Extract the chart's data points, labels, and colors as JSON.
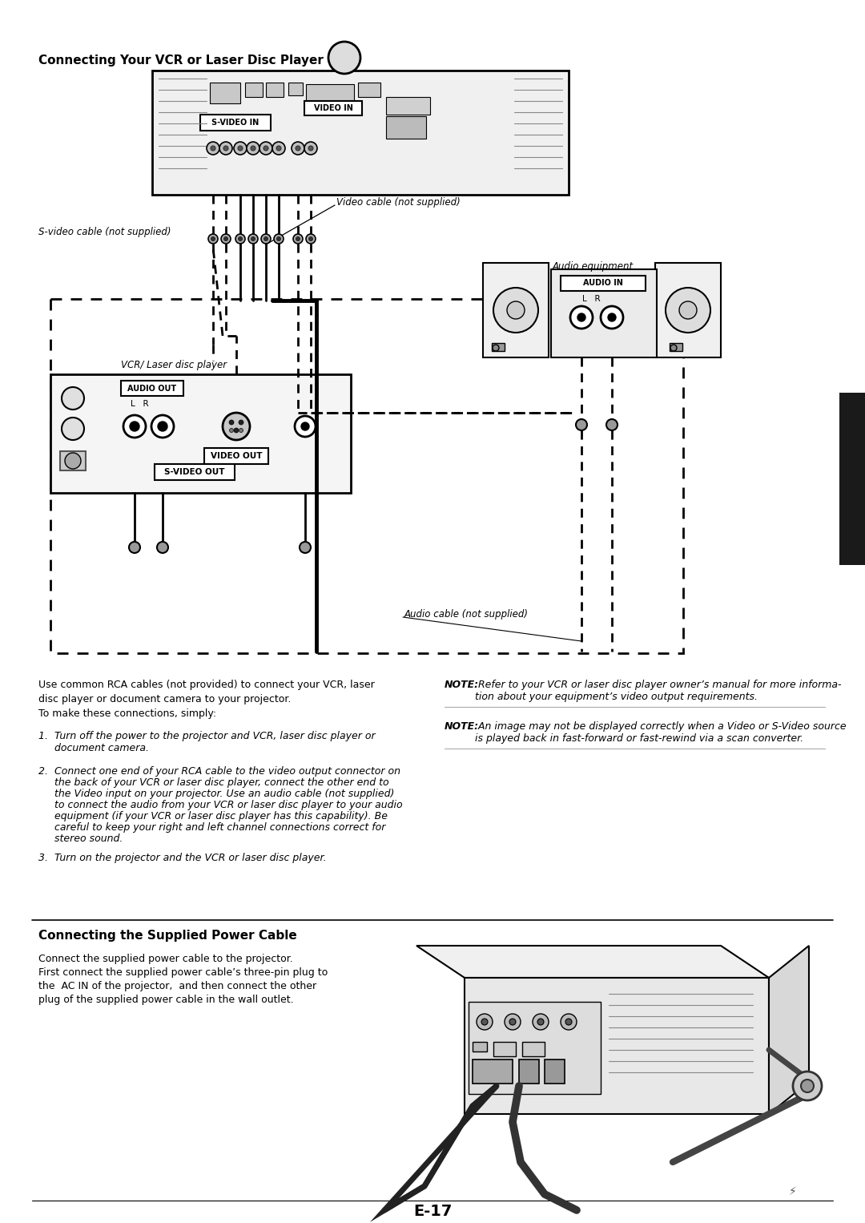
{
  "bg_color": "#ffffff",
  "text_color": "#000000",
  "page_num": "E-17",
  "title1": "Connecting Your VCR or Laser Disc Player",
  "title2": "Connecting the Supplied Power Cable",
  "label_svideo_in": "S-VIDEO IN",
  "label_video_in": "VIDEO IN",
  "label_audio_eq": "Audio equipment",
  "label_audio_in": "AUDIO IN",
  "label_lr_audio": "L   R",
  "label_vcr": "VCR/ Laser disc player",
  "label_audio_out": "AUDIO OUT",
  "label_lr_vcr": "L   R",
  "label_video_out": "VIDEO OUT",
  "label_svideo_out": "S-VIDEO OUT",
  "label_video_cable": "Video cable (not supplied)",
  "label_svideo_cable": "S-video cable (not supplied)",
  "label_audio_cable": "Audio cable (not supplied)",
  "body1_line1": "Use common RCA cables (not provided) to connect your VCR, laser",
  "body1_line2": "disc player or document camera to your projector.",
  "body1_line3": "To make these connections, simply:",
  "step1": "1.  Turn off the power to the projector and VCR, laser disc player or\n     document camera.",
  "step2a": "2.  Connect one end of your RCA cable to the video output connector on",
  "step2b": "     the back of your VCR or laser disc player, connect the other end to",
  "step2c": "     the Video input on your projector. Use an audio cable (not supplied)",
  "step2d": "     to connect the audio from your VCR or laser disc player to your audio",
  "step2e": "     equipment (if your VCR or laser disc player has this capability). Be",
  "step2f": "     careful to keep your right and left channel connections correct for",
  "step2g": "     stereo sound.",
  "step3": "3.  Turn on the projector and the VCR or laser disc player.",
  "note1_bold": "NOTE:",
  "note1_rest": " Refer to your VCR or laser disc player owner’s manual for more informa-\ntion about your equipment’s video output requirements.",
  "note2_bold": "NOTE:",
  "note2_rest": " An image may not be displayed correctly when a Video or S-Video source\nis played back in fast-forward or fast-rewind via a scan converter.",
  "power_line1": "Connect the supplied power cable to the projector.",
  "power_line2": "First connect the supplied power cable’s three-pin plug to",
  "power_line3": "the  AC IN of the projector,  and then connect the other",
  "power_line4": "plug of the supplied power cable in the wall outlet.",
  "dark_tab_color": "#1a1a1a",
  "gray": "#888888",
  "lightgray": "#e8e8e8",
  "proj_fill": "#f0f0f0",
  "vcr_fill": "#f5f5f5",
  "note_line_color": "#aaaaaa"
}
